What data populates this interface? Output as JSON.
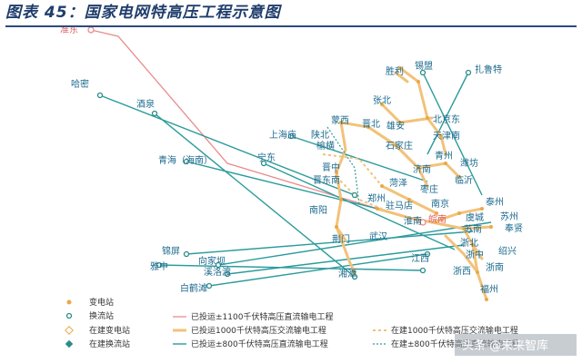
{
  "title": "图表 45：国家电网特高压工程示意图",
  "colors": {
    "uhv1100": "#e98b8b",
    "ac1000": "#f2c27a",
    "dc800": "#2b9b9b",
    "node_sub": "#e8a948",
    "node_conv": "#2b8b8b",
    "label": "#1c6a8e"
  },
  "places": [
    {
      "id": "zhundong",
      "label": "准东",
      "color": "red"
    },
    {
      "id": "hami",
      "label": "哈密"
    },
    {
      "id": "jiuquan",
      "label": "酒泉"
    },
    {
      "id": "qinghai",
      "label": "青海（海南）"
    },
    {
      "id": "ningdong",
      "label": "宁东"
    },
    {
      "id": "shanghaimiao",
      "label": "上海庙"
    },
    {
      "id": "shanbei",
      "label": "陕北"
    },
    {
      "id": "yuheng",
      "label": "榆横"
    },
    {
      "id": "mengxi",
      "label": "蒙西"
    },
    {
      "id": "jinbei",
      "label": "晋北"
    },
    {
      "id": "ximeng",
      "label": "锡盟"
    },
    {
      "id": "shengli",
      "label": "胜利"
    },
    {
      "id": "zhalute",
      "label": "扎鲁特"
    },
    {
      "id": "zhangbei",
      "label": "张北"
    },
    {
      "id": "xiongan",
      "label": "雄安"
    },
    {
      "id": "beijingdong",
      "label": "北京东"
    },
    {
      "id": "tianjinnan",
      "label": "天津南"
    },
    {
      "id": "shijiazhuang",
      "label": "石家庄"
    },
    {
      "id": "qingzhou",
      "label": "青州"
    },
    {
      "id": "weifang",
      "label": "潍坊"
    },
    {
      "id": "jinan",
      "label": "济南"
    },
    {
      "id": "linyi",
      "label": "临沂"
    },
    {
      "id": "jinzhong",
      "label": "晋中"
    },
    {
      "id": "jindongnan",
      "label": "晋东南"
    },
    {
      "id": "heze",
      "label": "菏泽"
    },
    {
      "id": "zaozhuang",
      "label": "枣庄"
    },
    {
      "id": "zhengzhou",
      "label": "郑州"
    },
    {
      "id": "nanyang",
      "label": "南阳"
    },
    {
      "id": "zhumadian",
      "label": "驻马店"
    },
    {
      "id": "nanjing",
      "label": "南京"
    },
    {
      "id": "taizhou",
      "label": "泰州"
    },
    {
      "id": "huainan",
      "label": "淮南"
    },
    {
      "id": "wannan",
      "label": "皖南",
      "color": "red"
    },
    {
      "id": "yucheng",
      "label": "虞城"
    },
    {
      "id": "suzhou",
      "label": "苏州"
    },
    {
      "id": "sunan",
      "label": "苏南"
    },
    {
      "id": "fengxian",
      "label": "奉贤"
    },
    {
      "id": "jingmen",
      "label": "荆门"
    },
    {
      "id": "wuhan",
      "label": "武汉"
    },
    {
      "id": "zhexi",
      "label": "浙北"
    },
    {
      "id": "shaoxing",
      "label": "绍兴"
    },
    {
      "id": "zhezhong",
      "label": "浙中"
    },
    {
      "id": "zhenan",
      "label": "浙南"
    },
    {
      "id": "zhexi2",
      "label": "浙西"
    },
    {
      "id": "fuzhou",
      "label": "福州"
    },
    {
      "id": "jiangxi",
      "label": "江西"
    },
    {
      "id": "xiangtan",
      "label": "湘潭"
    },
    {
      "id": "jinping",
      "label": "锦屏"
    },
    {
      "id": "yazhong",
      "label": "雅中"
    },
    {
      "id": "xiangjiaba",
      "label": "向家坝"
    },
    {
      "id": "xiluodu",
      "label": "溪洛渡"
    },
    {
      "id": "baihetan",
      "label": "白鹤滩"
    }
  ],
  "legend": {
    "substation": "变电站",
    "converter": "换流站",
    "sub_building": "在建变电站",
    "conv_building": "在建换流站",
    "dc1100": "已投运±1100千伏特高压直流输电工程",
    "ac1000": "已投运1000千伏特高压交流输电工程",
    "dc800": "已投运±800千伏特高压直流输电工程",
    "ac1000_building": "在建1000千伏特高压交流输电工程",
    "dc800_building": "在建±800千伏特高压直流输电工程"
  },
  "watermark": "头条 @未来智库"
}
